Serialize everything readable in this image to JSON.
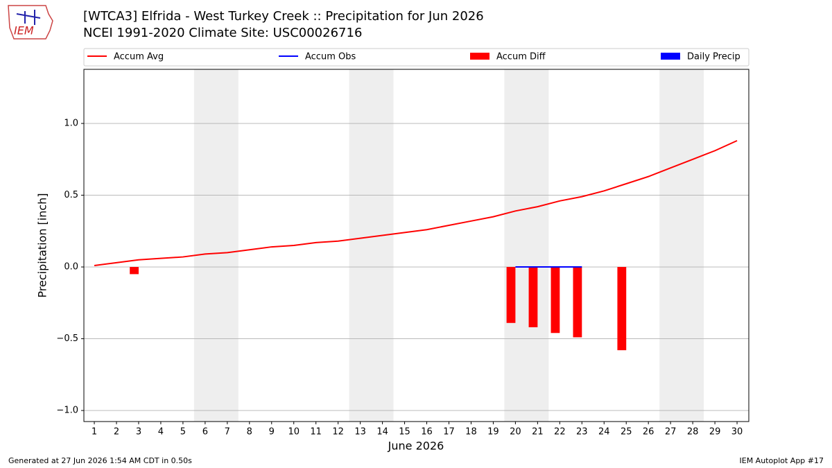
{
  "logo": {
    "text": "IEM"
  },
  "footer": {
    "left": "Generated at 27 Jun 2026 1:54 AM CDT in 0.50s",
    "right": "IEM Autoplot App #17"
  },
  "chart_data": {
    "type": "line",
    "title": "[WTCA3] Elfrida - West Turkey Creek :: Precipitation for Jun 2026",
    "subtitle": "NCEI 1991-2020 Climate Site: USC00026716",
    "xlabel": "June 2026",
    "ylabel": "Precipitation [inch]",
    "x": [
      1,
      2,
      3,
      4,
      5,
      6,
      7,
      8,
      9,
      10,
      11,
      12,
      13,
      14,
      15,
      16,
      17,
      18,
      19,
      20,
      21,
      22,
      23,
      24,
      25,
      26,
      27,
      28,
      29,
      30
    ],
    "xlim": [
      0.53,
      30.53
    ],
    "xticks": [
      1,
      2,
      3,
      4,
      5,
      6,
      7,
      8,
      9,
      10,
      11,
      12,
      13,
      14,
      15,
      16,
      17,
      18,
      19,
      20,
      21,
      22,
      23,
      24,
      25,
      26,
      27,
      28,
      29,
      30
    ],
    "ylim": [
      -1.077,
      1.377
    ],
    "yticks": [
      {
        "value": -1,
        "label": "−1.0"
      },
      {
        "value": -0.5,
        "label": "−0.5"
      },
      {
        "value": 0,
        "label": "0.0"
      },
      {
        "value": 0.5,
        "label": "0.5"
      },
      {
        "value": 1,
        "label": "1.0"
      }
    ],
    "grid": true,
    "bar_width": 0.4,
    "shaded_ranges": [
      [
        5.5,
        7.5
      ],
      [
        12.5,
        14.5
      ],
      [
        19.5,
        21.5
      ],
      [
        26.5,
        28.5
      ]
    ],
    "shade_color": "#eeeeee",
    "series": [
      {
        "name": "Accum Avg",
        "kind": "line",
        "color": "#ff0000",
        "values": [
          0.01,
          0.03,
          0.05,
          0.06,
          0.07,
          0.09,
          0.1,
          0.12,
          0.14,
          0.15,
          0.17,
          0.18,
          0.2,
          0.22,
          0.24,
          0.26,
          0.29,
          0.32,
          0.35,
          0.39,
          0.42,
          0.46,
          0.49,
          0.53,
          0.58,
          0.63,
          0.69,
          0.75,
          0.81,
          0.88
        ]
      },
      {
        "name": "Accum Obs",
        "kind": "line",
        "color": "#0000ff",
        "values": [
          null,
          null,
          null,
          null,
          null,
          null,
          null,
          null,
          null,
          null,
          null,
          null,
          null,
          null,
          null,
          null,
          null,
          null,
          null,
          0,
          0,
          0,
          0,
          null,
          0,
          null,
          null,
          null,
          null,
          null
        ]
      },
      {
        "name": "Accum Diff",
        "kind": "bar",
        "color": "#ff0000",
        "values": [
          null,
          null,
          -0.05,
          null,
          null,
          null,
          null,
          null,
          null,
          null,
          null,
          null,
          null,
          null,
          null,
          null,
          null,
          null,
          null,
          -0.39,
          -0.42,
          -0.46,
          -0.49,
          null,
          -0.58,
          null,
          null,
          null,
          null,
          null
        ]
      },
      {
        "name": "Daily Precip",
        "kind": "bar",
        "color": "#0000ff",
        "values": [
          null,
          null,
          null,
          null,
          null,
          null,
          null,
          null,
          null,
          null,
          null,
          null,
          null,
          null,
          null,
          null,
          null,
          null,
          null,
          0,
          0,
          0,
          0,
          null,
          0,
          null,
          null,
          null,
          null,
          null
        ]
      }
    ]
  }
}
